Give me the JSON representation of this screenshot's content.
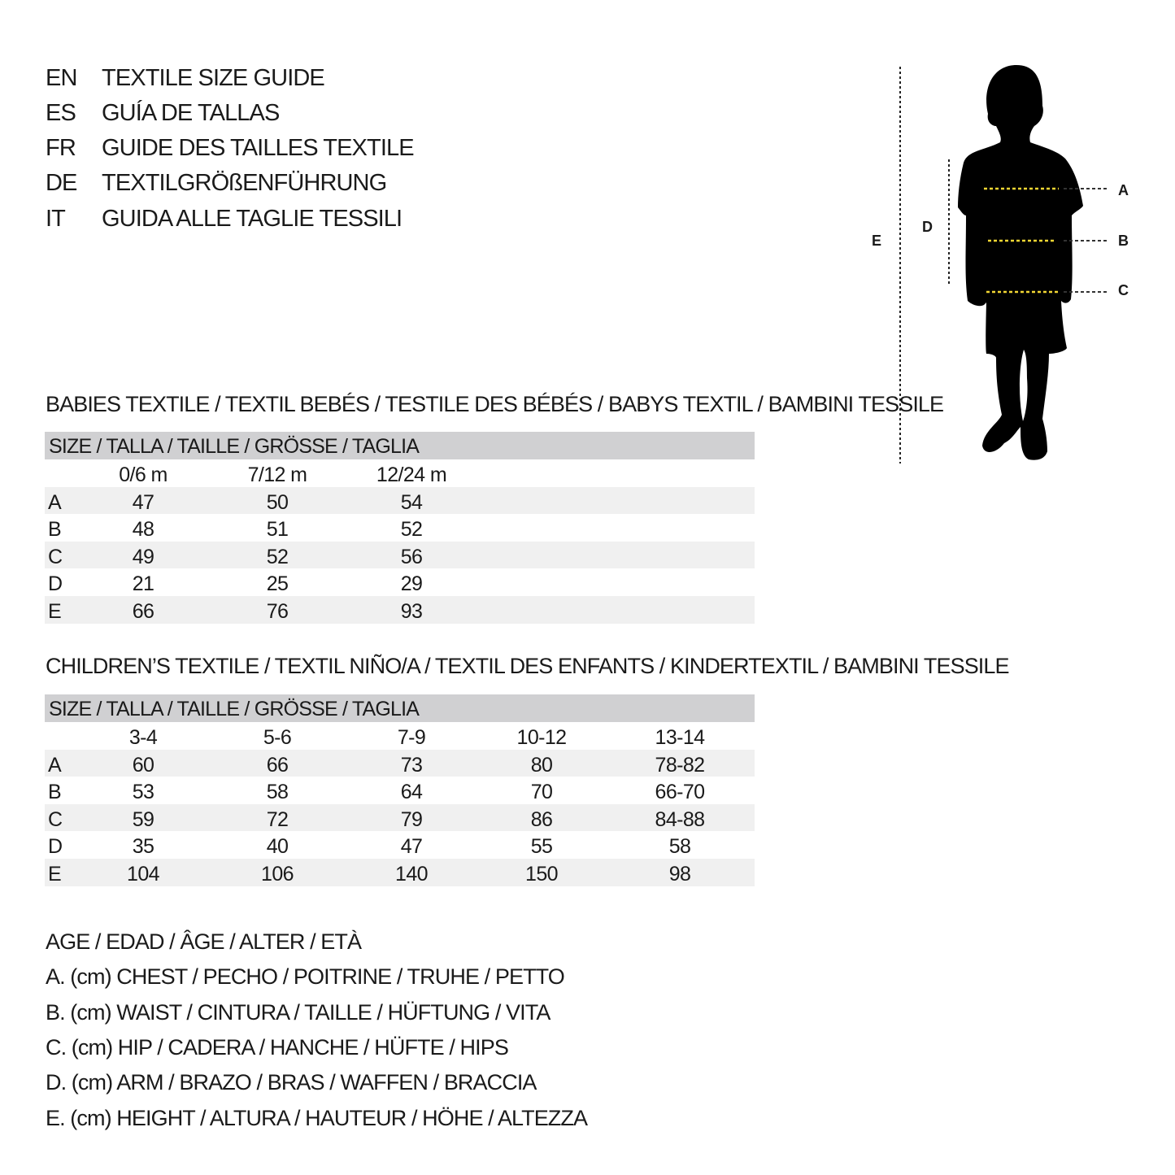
{
  "titles": [
    {
      "lang": "EN",
      "text": "TEXTILE SIZE GUIDE"
    },
    {
      "lang": "ES",
      "text": "GUÍA DE TALLAS"
    },
    {
      "lang": "FR",
      "text": "GUIDE DES TAILLES TEXTILE"
    },
    {
      "lang": "DE",
      "text": "TEXTILGRÖßENFÜHRUNG"
    },
    {
      "lang": "IT",
      "text": "GUIDA ALLE TAGLIE TESSILI"
    }
  ],
  "figure": {
    "labels": {
      "A": "A",
      "B": "B",
      "C": "C",
      "D": "D",
      "E": "E"
    },
    "accent": "#f2d633"
  },
  "babies": {
    "title": "BABIES TEXTILE / TEXTIL BEBÉS / TESTILE DES BÉBÉS / BABYS TEXTIL / BAMBINI TESSILE",
    "header": "SIZE / TALLA / TAILLE / GRÖSSE / TAGLIA",
    "columns": [
      "0/6 m",
      "7/12 m",
      "12/24 m"
    ],
    "rows": [
      {
        "label": "A",
        "values": [
          "47",
          "50",
          "54"
        ]
      },
      {
        "label": "B",
        "values": [
          "48",
          "51",
          "52"
        ]
      },
      {
        "label": "C",
        "values": [
          "49",
          "52",
          "56"
        ]
      },
      {
        "label": "D",
        "values": [
          "21",
          "25",
          "29"
        ]
      },
      {
        "label": "E",
        "values": [
          "66",
          "76",
          "93"
        ]
      }
    ]
  },
  "children": {
    "title": "CHILDREN’S TEXTILE / TEXTIL NIÑO/A / TEXTIL DES ENFANTS / KINDERTEXTIL / BAMBINI TESSILE",
    "header": "SIZE / TALLA / TAILLE / GRÖSSE / TAGLIA",
    "columns": [
      "3-4",
      "5-6",
      "7-9",
      "10-12",
      "13-14"
    ],
    "rows": [
      {
        "label": "A",
        "values": [
          "60",
          "66",
          "73",
          "80",
          "78-82"
        ]
      },
      {
        "label": "B",
        "values": [
          "53",
          "58",
          "64",
          "70",
          "66-70"
        ]
      },
      {
        "label": "C",
        "values": [
          "59",
          "72",
          "79",
          "86",
          "84-88"
        ]
      },
      {
        "label": "D",
        "values": [
          "35",
          "40",
          "47",
          "55",
          "58"
        ]
      },
      {
        "label": "E",
        "values": [
          "104",
          "106",
          "140",
          "150",
          "98"
        ]
      }
    ]
  },
  "legend": [
    "AGE / EDAD / ÂGE / ALTER / ETÀ",
    "A. (cm) CHEST / PECHO / POITRINE / TRUHE / PETTO",
    "B. (cm) WAIST / CINTURA / TAILLE / HÜFTUNG / VITA",
    "C. (cm) HIP / CADERA / HANCHE / HÜFTE / HIPS",
    "D. (cm) ARM / BRAZO / BRAS / WAFFEN / BRACCIA",
    "E. (cm) HEIGHT / ALTURA / HAUTEUR / HÖHE / ALTEZZA"
  ]
}
